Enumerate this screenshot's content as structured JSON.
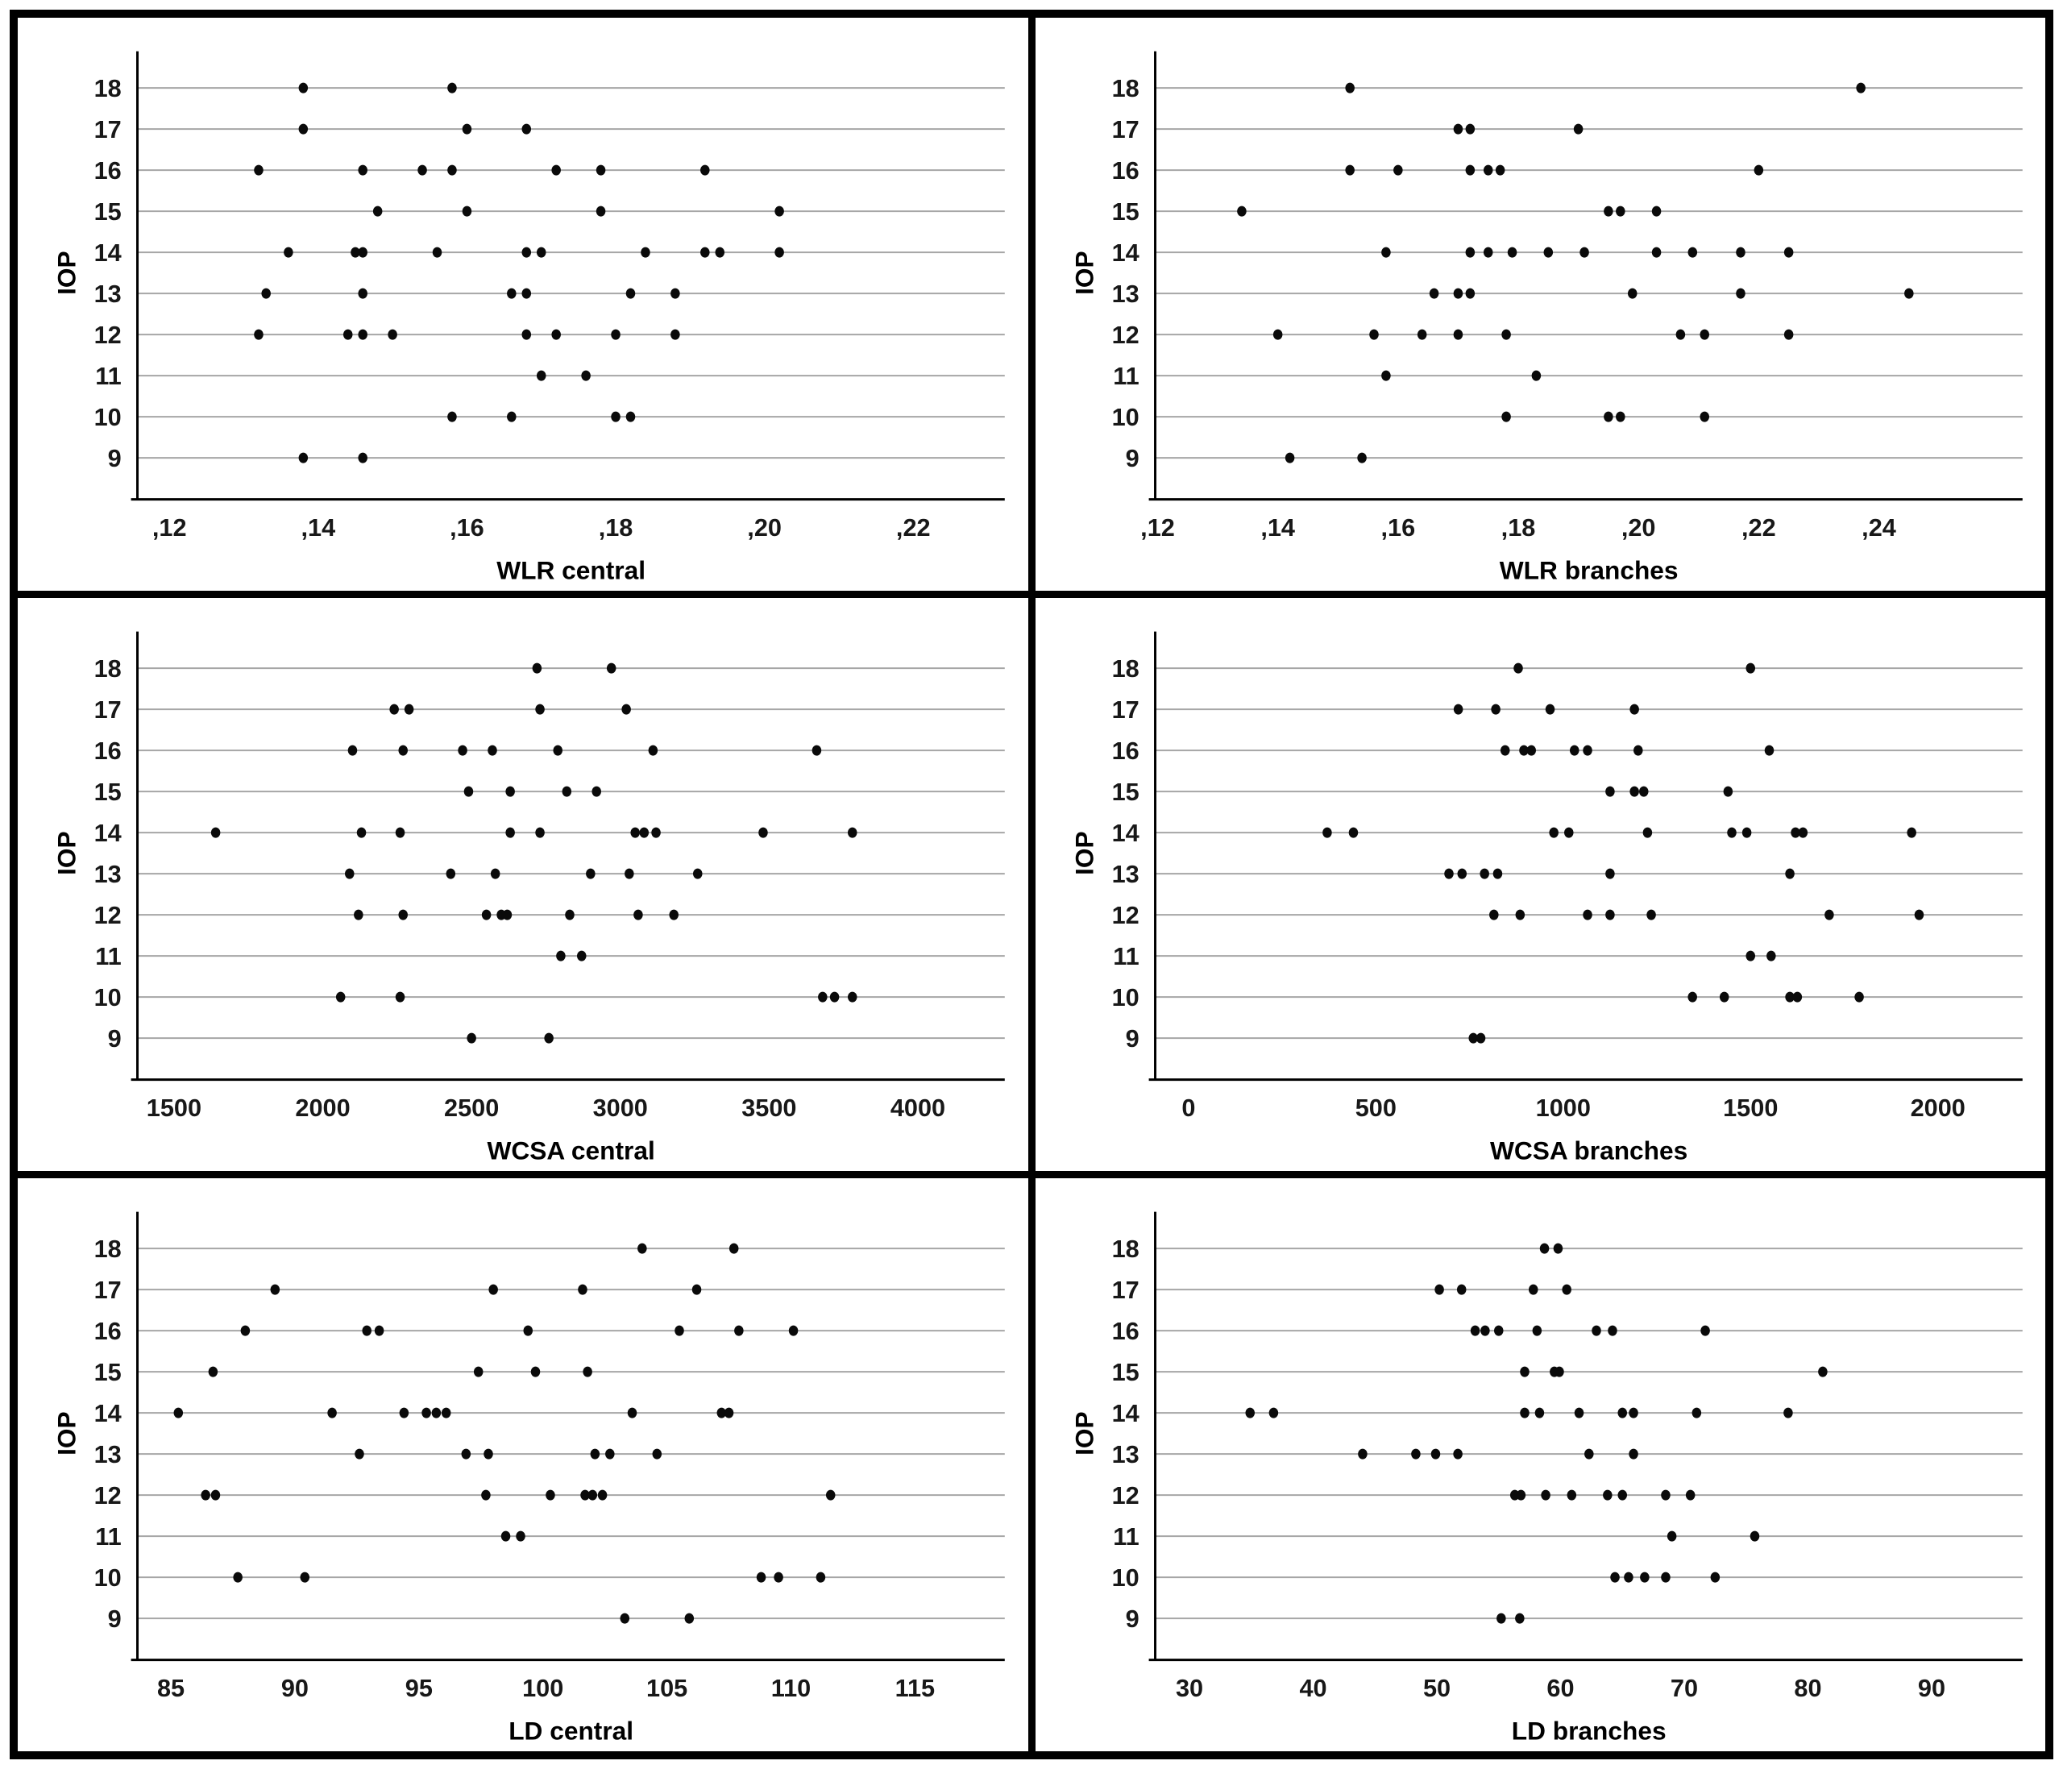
{
  "figure": {
    "background": "#ffffff",
    "frame_color": "#000000",
    "grid_color": "#a6a6a6",
    "axis_color": "#000000",
    "point_color": "#0a0a0a",
    "tick_color": "#181818",
    "ylabel": "IOP",
    "layout": "2x3-grid"
  },
  "chart_data": [
    {
      "type": "scatter",
      "title": "",
      "xlabel": "WLR central",
      "ylabel": "IOP",
      "legend": "none",
      "grid": "horizontal",
      "x_tick_labels": [
        ",12",
        ",14",
        ",16",
        ",18",
        ",20",
        ",22"
      ],
      "x_tick_values": [
        0.12,
        0.14,
        0.16,
        0.18,
        0.2,
        0.22
      ],
      "xlim": [
        0.1157,
        0.2323
      ],
      "y_tick_values": [
        9,
        10,
        11,
        12,
        13,
        14,
        15,
        16,
        17,
        18
      ],
      "ylim": [
        9,
        18
      ],
      "rows": [
        {
          "iop": 18,
          "x": [
            0.138,
            0.158
          ]
        },
        {
          "iop": 17,
          "x": [
            0.138,
            0.16,
            0.168
          ]
        },
        {
          "iop": 16,
          "x": [
            0.132,
            0.146,
            0.154,
            0.158,
            0.172,
            0.178,
            0.192
          ]
        },
        {
          "iop": 15,
          "x": [
            0.148,
            0.16,
            0.178,
            0.202
          ]
        },
        {
          "iop": 14,
          "x": [
            0.136,
            0.145,
            0.146,
            0.156,
            0.168,
            0.17,
            0.184,
            0.192,
            0.194,
            0.202
          ]
        },
        {
          "iop": 13,
          "x": [
            0.133,
            0.146,
            0.166,
            0.168,
            0.182,
            0.188
          ]
        },
        {
          "iop": 12,
          "x": [
            0.132,
            0.144,
            0.146,
            0.15,
            0.168,
            0.172,
            0.18,
            0.188
          ]
        },
        {
          "iop": 11,
          "x": [
            0.17,
            0.176
          ]
        },
        {
          "iop": 10,
          "x": [
            0.158,
            0.166,
            0.18,
            0.182
          ]
        },
        {
          "iop": 9,
          "x": [
            0.138,
            0.146
          ]
        }
      ]
    },
    {
      "type": "scatter",
      "title": "",
      "xlabel": "WLR branches",
      "ylabel": "IOP",
      "legend": "none",
      "grid": "horizontal",
      "x_tick_labels": [
        ",12",
        ",14",
        ",16",
        ",18",
        ",20",
        ",22",
        ",24"
      ],
      "x_tick_values": [
        0.12,
        0.14,
        0.16,
        0.18,
        0.2,
        0.22,
        0.24
      ],
      "xlim": [
        0.1196,
        0.2639
      ],
      "y_tick_values": [
        9,
        10,
        11,
        12,
        13,
        14,
        15,
        16,
        17,
        18
      ],
      "ylim": [
        9,
        18
      ],
      "rows": [
        {
          "iop": 18,
          "x": [
            0.152,
            0.237
          ]
        },
        {
          "iop": 17,
          "x": [
            0.17,
            0.172,
            0.19
          ]
        },
        {
          "iop": 16,
          "x": [
            0.152,
            0.16,
            0.172,
            0.175,
            0.177,
            0.22
          ]
        },
        {
          "iop": 15,
          "x": [
            0.134,
            0.195,
            0.197,
            0.203
          ]
        },
        {
          "iop": 14,
          "x": [
            0.158,
            0.172,
            0.175,
            0.179,
            0.185,
            0.191,
            0.203,
            0.209,
            0.217,
            0.225
          ]
        },
        {
          "iop": 13,
          "x": [
            0.166,
            0.17,
            0.172,
            0.199,
            0.217,
            0.245
          ]
        },
        {
          "iop": 12,
          "x": [
            0.14,
            0.156,
            0.164,
            0.17,
            0.178,
            0.207,
            0.211,
            0.225
          ]
        },
        {
          "iop": 11,
          "x": [
            0.158,
            0.183
          ]
        },
        {
          "iop": 10,
          "x": [
            0.178,
            0.195,
            0.197,
            0.211
          ]
        },
        {
          "iop": 9,
          "x": [
            0.142,
            0.154
          ]
        }
      ]
    },
    {
      "type": "scatter",
      "title": "",
      "xlabel": "WCSA central",
      "ylabel": "IOP",
      "legend": "none",
      "grid": "horizontal",
      "x_tick_labels": [
        "1500",
        "2000",
        "2500",
        "3000",
        "3500",
        "4000"
      ],
      "x_tick_values": [
        1500,
        2000,
        2500,
        3000,
        3500,
        4000
      ],
      "xlim": [
        1377,
        4292
      ],
      "y_tick_values": [
        9,
        10,
        11,
        12,
        13,
        14,
        15,
        16,
        17,
        18
      ],
      "ylim": [
        9,
        18
      ],
      "rows": [
        {
          "iop": 18,
          "x": [
            2720,
            2970
          ]
        },
        {
          "iop": 17,
          "x": [
            2240,
            2290,
            2730,
            3020
          ]
        },
        {
          "iop": 16,
          "x": [
            2100,
            2270,
            2470,
            2570,
            2790,
            3110,
            3660
          ]
        },
        {
          "iop": 15,
          "x": [
            2490,
            2630,
            2820,
            2920
          ]
        },
        {
          "iop": 14,
          "x": [
            1640,
            2130,
            2260,
            2630,
            2730,
            3050,
            3080,
            3120,
            3480,
            3780
          ]
        },
        {
          "iop": 13,
          "x": [
            2090,
            2430,
            2580,
            2900,
            3030,
            3260
          ]
        },
        {
          "iop": 12,
          "x": [
            2120,
            2270,
            2550,
            2600,
            2620,
            2830,
            3060,
            3180
          ]
        },
        {
          "iop": 11,
          "x": [
            2800,
            2870
          ]
        },
        {
          "iop": 10,
          "x": [
            2060,
            2260,
            3680,
            3720,
            3780
          ]
        },
        {
          "iop": 9,
          "x": [
            2500,
            2760
          ]
        }
      ]
    },
    {
      "type": "scatter",
      "title": "",
      "xlabel": "WCSA branches",
      "ylabel": "IOP",
      "legend": "none",
      "grid": "horizontal",
      "x_tick_labels": [
        "0",
        "500",
        "1000",
        "1500",
        "2000"
      ],
      "x_tick_values": [
        0,
        500,
        1000,
        1500,
        2000
      ],
      "xlim": [
        -89,
        2226
      ],
      "y_tick_values": [
        9,
        10,
        11,
        12,
        13,
        14,
        15,
        16,
        17,
        18
      ],
      "ylim": [
        9,
        18
      ],
      "rows": [
        {
          "iop": 18,
          "x": [
            880,
            1500
          ]
        },
        {
          "iop": 17,
          "x": [
            720,
            820,
            965,
            1190
          ]
        },
        {
          "iop": 16,
          "x": [
            845,
            895,
            915,
            1030,
            1065,
            1200,
            1550
          ]
        },
        {
          "iop": 15,
          "x": [
            1125,
            1190,
            1215,
            1440
          ]
        },
        {
          "iop": 14,
          "x": [
            370,
            440,
            975,
            1015,
            1225,
            1450,
            1490,
            1620,
            1640,
            1930
          ]
        },
        {
          "iop": 13,
          "x": [
            695,
            730,
            790,
            825,
            1125,
            1605
          ]
        },
        {
          "iop": 12,
          "x": [
            815,
            885,
            1065,
            1125,
            1235,
            1710,
            1950
          ]
        },
        {
          "iop": 11,
          "x": [
            1500,
            1555
          ]
        },
        {
          "iop": 10,
          "x": [
            1345,
            1430,
            1605,
            1625,
            1790
          ]
        },
        {
          "iop": 9,
          "x": [
            760,
            780
          ]
        }
      ]
    },
    {
      "type": "scatter",
      "title": "",
      "xlabel": "LD central",
      "ylabel": "IOP",
      "legend": "none",
      "grid": "horizontal",
      "x_tick_labels": [
        "85",
        "90",
        "95",
        "100",
        "105",
        "110",
        "115"
      ],
      "x_tick_values": [
        85,
        90,
        95,
        100,
        105,
        110,
        115
      ],
      "xlim": [
        83.65,
        118.62
      ],
      "y_tick_values": [
        9,
        10,
        11,
        12,
        13,
        14,
        15,
        16,
        17,
        18
      ],
      "ylim": [
        9,
        18
      ],
      "rows": [
        {
          "iop": 18,
          "x": [
            104.0,
            107.7
          ]
        },
        {
          "iop": 17,
          "x": [
            89.2,
            98.0,
            101.6,
            106.2
          ]
        },
        {
          "iop": 16,
          "x": [
            88.0,
            92.9,
            93.4,
            99.4,
            105.5,
            107.9,
            110.1
          ]
        },
        {
          "iop": 15,
          "x": [
            86.7,
            97.4,
            99.7,
            101.8
          ]
        },
        {
          "iop": 14,
          "x": [
            85.3,
            91.5,
            94.4,
            95.3,
            95.7,
            96.1,
            103.6,
            107.2,
            107.5
          ]
        },
        {
          "iop": 13,
          "x": [
            92.6,
            96.9,
            97.8,
            102.1,
            102.7,
            104.6
          ]
        },
        {
          "iop": 12,
          "x": [
            86.4,
            86.8,
            97.7,
            100.3,
            101.7,
            102.0,
            102.4,
            111.6
          ]
        },
        {
          "iop": 11,
          "x": [
            98.5,
            99.1
          ]
        },
        {
          "iop": 10,
          "x": [
            87.7,
            90.4,
            108.8,
            109.5,
            111.2
          ]
        },
        {
          "iop": 9,
          "x": [
            103.3,
            105.9
          ]
        }
      ]
    },
    {
      "type": "scatter",
      "title": "",
      "xlabel": "LD branches",
      "ylabel": "IOP",
      "legend": "none",
      "grid": "horizontal",
      "x_tick_labels": [
        "30",
        "40",
        "50",
        "60",
        "70",
        "80",
        "90"
      ],
      "x_tick_values": [
        30,
        40,
        50,
        60,
        70,
        80,
        90
      ],
      "xlim": [
        27.23,
        97.35
      ],
      "y_tick_values": [
        9,
        10,
        11,
        12,
        13,
        14,
        15,
        16,
        17,
        18
      ],
      "ylim": [
        9,
        18
      ],
      "rows": [
        {
          "iop": 18,
          "x": [
            58.7,
            59.8
          ]
        },
        {
          "iop": 17,
          "x": [
            50.2,
            52.0,
            57.8,
            60.5
          ]
        },
        {
          "iop": 16,
          "x": [
            53.1,
            53.9,
            55.0,
            58.1,
            62.9,
            64.2,
            71.7
          ]
        },
        {
          "iop": 15,
          "x": [
            57.1,
            59.5,
            59.9,
            81.2
          ]
        },
        {
          "iop": 14,
          "x": [
            34.9,
            36.8,
            57.1,
            58.3,
            61.5,
            65.0,
            65.9,
            71.0,
            78.4
          ]
        },
        {
          "iop": 13,
          "x": [
            44.0,
            48.3,
            49.9,
            51.7,
            62.3,
            65.9
          ]
        },
        {
          "iop": 12,
          "x": [
            56.3,
            56.8,
            58.8,
            60.9,
            63.8,
            65.0,
            68.5,
            70.5
          ]
        },
        {
          "iop": 11,
          "x": [
            69.0,
            75.7
          ]
        },
        {
          "iop": 10,
          "x": [
            64.4,
            65.5,
            66.8,
            68.5,
            72.5
          ]
        },
        {
          "iop": 9,
          "x": [
            55.2,
            56.7
          ]
        }
      ]
    }
  ]
}
